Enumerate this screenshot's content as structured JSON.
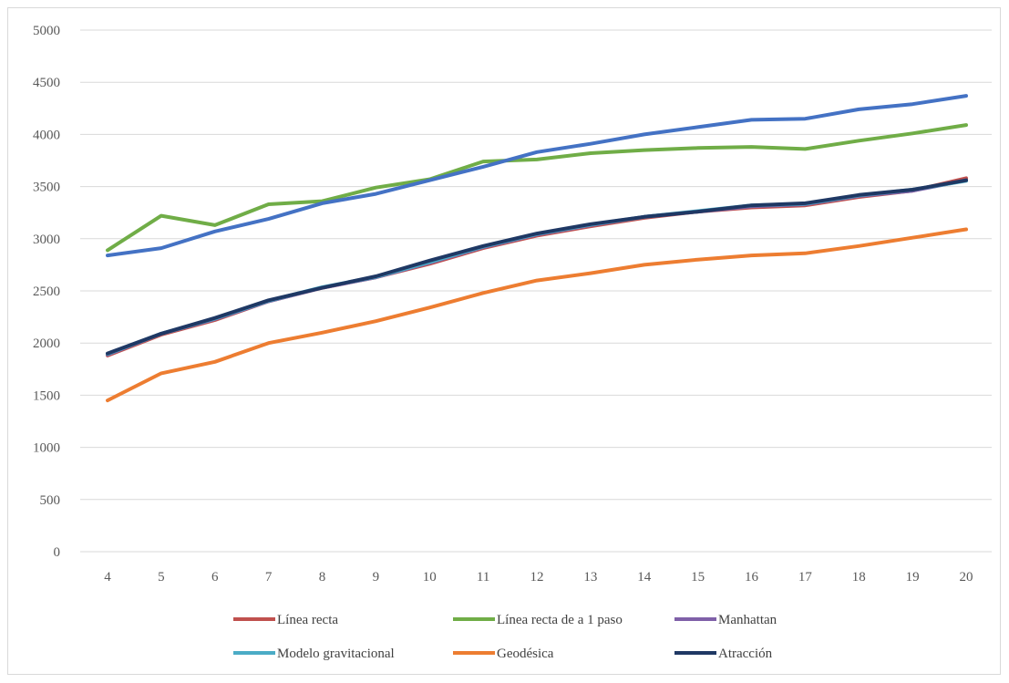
{
  "chart_data": {
    "type": "line",
    "title": "",
    "xlabel": "",
    "ylabel": "",
    "categories": [
      "4",
      "5",
      "6",
      "7",
      "8",
      "9",
      "10",
      "11",
      "12",
      "13",
      "14",
      "15",
      "16",
      "17",
      "18",
      "19",
      "20"
    ],
    "ylim": [
      0,
      5000
    ],
    "yticks": [
      "0",
      "500",
      "1000",
      "1500",
      "2000",
      "2500",
      "3000",
      "3500",
      "4000",
      "4500",
      "5000"
    ],
    "grid": true,
    "legend_position": "bottom",
    "series": [
      {
        "name": "Línea recta",
        "color": "#c0504d",
        "values": [
          1880,
          2080,
          2220,
          2400,
          2530,
          2630,
          2760,
          2910,
          3030,
          3120,
          3200,
          3260,
          3300,
          3320,
          3400,
          3460,
          3580
        ]
      },
      {
        "name": "Línea recta de a 1 paso",
        "color": "#70ad47",
        "values": [
          2890,
          3220,
          3130,
          3330,
          3360,
          3490,
          3570,
          3740,
          3760,
          3820,
          3850,
          3870,
          3880,
          3860,
          3940,
          4010,
          4090
        ]
      },
      {
        "name": "Manhattan",
        "color": "#7f60a8",
        "values": [
          1890,
          2090,
          2230,
          2400,
          2530,
          2630,
          2770,
          2920,
          3040,
          3130,
          3210,
          3260,
          3310,
          3330,
          3410,
          3460,
          3560
        ]
      },
      {
        "name": "Modelo gravitacional",
        "color": "#4bacc6",
        "values": [
          1895,
          2090,
          2235,
          2405,
          2535,
          2635,
          2775,
          2925,
          3045,
          3135,
          3210,
          3265,
          3320,
          3335,
          3415,
          3470,
          3555
        ]
      },
      {
        "name": "Geodésica",
        "color": "#ed7d31",
        "values": [
          1450,
          1710,
          1820,
          2000,
          2100,
          2210,
          2340,
          2480,
          2600,
          2670,
          2750,
          2800,
          2840,
          2860,
          2930,
          3010,
          3090
        ]
      },
      {
        "name": "Atracción",
        "color": "#1f3864",
        "values": [
          1900,
          2090,
          2240,
          2410,
          2530,
          2640,
          2790,
          2930,
          3050,
          3140,
          3210,
          3260,
          3320,
          3340,
          3420,
          3470,
          3560
        ]
      },
      {
        "name": "",
        "color": "#4472c4",
        "values": [
          2840,
          2910,
          3070,
          3190,
          3340,
          3430,
          3560,
          3690,
          3830,
          3910,
          4000,
          4070,
          4140,
          4150,
          4240,
          4290,
          4370
        ]
      }
    ]
  }
}
